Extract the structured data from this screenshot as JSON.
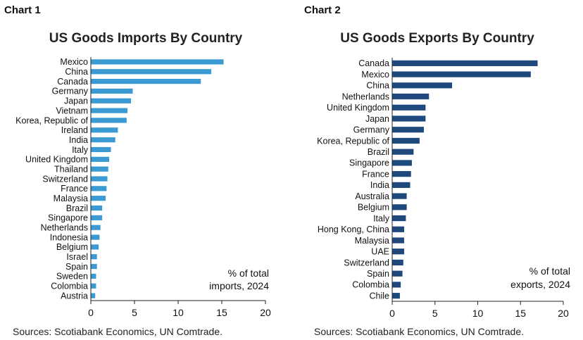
{
  "charts": [
    {
      "label": "Chart 1",
      "title": "US Goods Imports By Country",
      "note_line1": "% of total",
      "note_line2": "imports, 2024",
      "source": "Sources: Scotiabank Economics, UN Comtrade."
    },
    {
      "label": "Chart 2",
      "title": "US Goods Exports By Country",
      "note_line1": "% of total",
      "note_line2": "exports, 2024",
      "source": "Sources: Scotiabank Economics, UN Comtrade."
    }
  ],
  "chart_data": [
    {
      "type": "bar",
      "orientation": "horizontal",
      "title": "US Goods Imports By Country",
      "bar_color": "#3a9ad1",
      "xlim": [
        0,
        20
      ],
      "xticks": [
        0,
        5,
        10,
        15,
        20
      ],
      "categories": [
        "Mexico",
        "China",
        "Canada",
        "Germany",
        "Japan",
        "Vietnam",
        "Korea, Republic of",
        "Ireland",
        "India",
        "Italy",
        "United Kingdom",
        "Thailand",
        "Switzerland",
        "France",
        "Malaysia",
        "Brazil",
        "Singapore",
        "Netherlands",
        "Indonesia",
        "Belgium",
        "Israel",
        "Spain",
        "Sweden",
        "Colombia",
        "Austria"
      ],
      "values": [
        15.2,
        13.8,
        12.6,
        4.8,
        4.6,
        4.2,
        4.1,
        3.1,
        2.8,
        2.3,
        2.1,
        2.0,
        1.9,
        1.8,
        1.7,
        1.3,
        1.3,
        1.1,
        1.0,
        0.9,
        0.7,
        0.7,
        0.6,
        0.6,
        0.5
      ]
    },
    {
      "type": "bar",
      "orientation": "horizontal",
      "title": "US Goods Exports By Country",
      "bar_color": "#1f497d",
      "xlim": [
        0,
        20
      ],
      "xticks": [
        0,
        5,
        10,
        15,
        20
      ],
      "categories": [
        "Canada",
        "Mexico",
        "China",
        "Netherlands",
        "United Kingdom",
        "Japan",
        "Germany",
        "Korea, Republic of",
        "Brazil",
        "Singapore",
        "France",
        "India",
        "Australia",
        "Belgium",
        "Italy",
        "Hong Kong, China",
        "Malaysia",
        "UAE",
        "Switzerland",
        "Spain",
        "Colombia",
        "Chile"
      ],
      "values": [
        17.0,
        16.2,
        7.0,
        4.3,
        3.9,
        3.9,
        3.7,
        3.2,
        2.5,
        2.3,
        2.2,
        2.1,
        1.7,
        1.7,
        1.6,
        1.4,
        1.4,
        1.4,
        1.3,
        1.2,
        1.0,
        0.9
      ]
    }
  ]
}
